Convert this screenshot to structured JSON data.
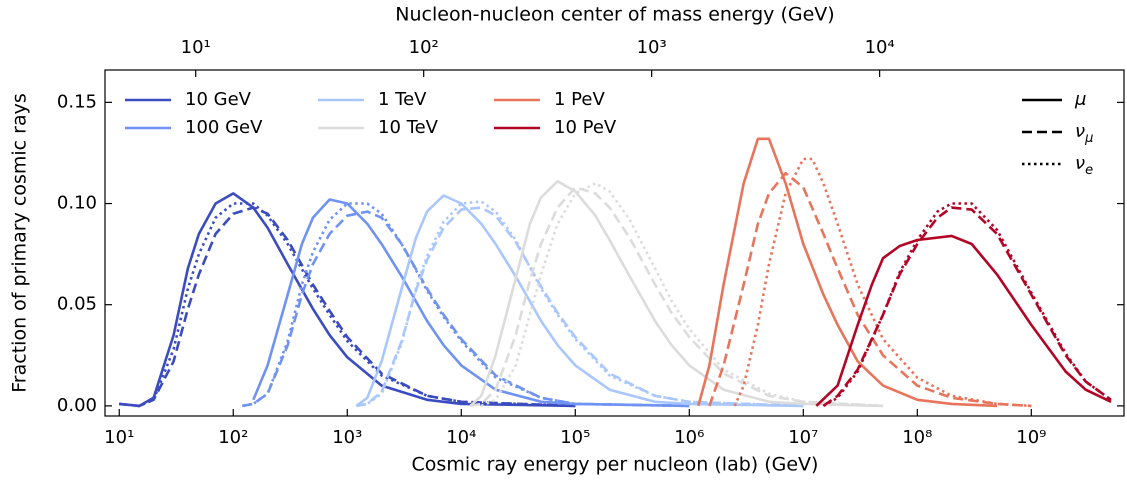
{
  "chart_data": {
    "type": "line",
    "xlabel": "Cosmic ray energy per nucleon (lab) (GeV)",
    "ylabel": "Fraction of primary cosmic rays",
    "x2label": "Nucleon-nucleon center of mass energy (GeV)",
    "xscale": "log",
    "x2scale": "log",
    "xlim": [
      7.5,
      6500000000
    ],
    "ylim": [
      -0.005,
      0.166
    ],
    "x2lim": [
      4.0,
      118000
    ],
    "xticks": [
      {
        "value": 10,
        "label": "10¹"
      },
      {
        "value": 100,
        "label": "10²"
      },
      {
        "value": 1000,
        "label": "10³"
      },
      {
        "value": 10000,
        "label": "10⁴"
      },
      {
        "value": 100000,
        "label": "10⁵"
      },
      {
        "value": 1000000,
        "label": "10⁶"
      },
      {
        "value": 10000000,
        "label": "10⁷"
      },
      {
        "value": 100000000,
        "label": "10⁸"
      },
      {
        "value": 1000000000,
        "label": "10⁹"
      }
    ],
    "x2ticks": [
      {
        "value": 10,
        "label": "10¹"
      },
      {
        "value": 100,
        "label": "10²"
      },
      {
        "value": 1000,
        "label": "10³"
      },
      {
        "value": 10000,
        "label": "10⁴"
      }
    ],
    "yticks": [
      {
        "value": 0,
        "label": "0.00"
      },
      {
        "value": 0.05,
        "label": "0.05"
      },
      {
        "value": 0.1,
        "label": "0.10"
      },
      {
        "value": 0.15,
        "label": "0.15"
      }
    ],
    "flavors": [
      {
        "name": "μ",
        "dash": "solid"
      },
      {
        "name": "ν",
        "subscript": "μ",
        "dash": "dashed"
      },
      {
        "name": "ν",
        "subscript": "e",
        "dash": "dotted"
      }
    ],
    "series": [
      {
        "name": "10 GeV",
        "color": "#3b4cc0",
        "lines": [
          {
            "x": [
              10,
              15,
              20,
              30,
              40,
              50,
              70,
              100,
              150,
              200,
              300,
              500,
              700,
              1000,
              2000,
              5000,
              10000,
              100000
            ],
            "values": [
              0.001,
              0.0,
              0.004,
              0.035,
              0.068,
              0.085,
              0.1,
              0.105,
              0.098,
              0.088,
              0.07,
              0.048,
              0.035,
              0.024,
              0.01,
              0.003,
              0.001,
              0.0
            ]
          },
          {
            "x": [
              10,
              15,
              20,
              30,
              40,
              50,
              70,
              100,
              150,
              200,
              300,
              500,
              700,
              1000,
              2000,
              5000,
              10000,
              100000
            ],
            "values": [
              0.001,
              0.0,
              0.003,
              0.022,
              0.048,
              0.065,
              0.085,
              0.095,
              0.098,
              0.095,
              0.082,
              0.06,
              0.047,
              0.034,
              0.016,
              0.005,
              0.002,
              0.0
            ]
          },
          {
            "x": [
              10,
              15,
              20,
              30,
              40,
              50,
              70,
              100,
              150,
              200,
              300,
              500,
              700,
              1000,
              2000,
              5000,
              10000,
              100000
            ],
            "values": [
              0.001,
              0.0,
              0.003,
              0.028,
              0.058,
              0.075,
              0.093,
              0.1,
              0.1,
              0.094,
              0.08,
              0.058,
              0.045,
              0.032,
              0.015,
              0.005,
              0.002,
              0.0
            ]
          }
        ]
      },
      {
        "name": "100 GeV",
        "color": "#6f92f3",
        "lines": [
          {
            "x": [
              150,
              200,
              300,
              400,
              500,
              700,
              1000,
              1500,
              2000,
              3000,
              5000,
              7000,
              10000,
              20000,
              50000,
              100000,
              1000000
            ],
            "values": [
              0.003,
              0.02,
              0.055,
              0.08,
              0.093,
              0.102,
              0.1,
              0.09,
              0.08,
              0.064,
              0.042,
              0.03,
              0.02,
              0.008,
              0.002,
              0.001,
              0.0
            ]
          },
          {
            "x": [
              120,
              150,
              200,
              300,
              400,
              500,
              700,
              1000,
              1500,
              2000,
              3000,
              5000,
              7000,
              10000,
              20000,
              50000,
              100000,
              1000000
            ],
            "values": [
              0.0,
              0.001,
              0.006,
              0.03,
              0.055,
              0.07,
              0.085,
              0.094,
              0.096,
              0.093,
              0.08,
              0.058,
              0.045,
              0.033,
              0.015,
              0.004,
              0.001,
              0.0
            ]
          },
          {
            "x": [
              120,
              150,
              200,
              300,
              400,
              500,
              700,
              1000,
              1500,
              2000,
              3000,
              5000,
              7000,
              10000,
              20000,
              50000,
              100000,
              1000000
            ],
            "values": [
              0.0,
              0.001,
              0.006,
              0.032,
              0.06,
              0.076,
              0.092,
              0.1,
              0.1,
              0.095,
              0.08,
              0.057,
              0.044,
              0.032,
              0.014,
              0.004,
              0.001,
              0.0
            ]
          }
        ]
      },
      {
        "name": "1 TeV",
        "color": "#aac7fd",
        "lines": [
          {
            "x": [
              1200,
              1500,
              2000,
              3000,
              4000,
              5000,
              7000,
              10000,
              15000,
              20000,
              30000,
              50000,
              70000,
              100000,
              200000,
              500000,
              1000000,
              10000000
            ],
            "values": [
              0.0,
              0.004,
              0.022,
              0.058,
              0.083,
              0.096,
              0.104,
              0.1,
              0.09,
              0.08,
              0.064,
              0.042,
              0.03,
              0.02,
              0.008,
              0.002,
              0.001,
              0.0
            ]
          },
          {
            "x": [
              1200,
              1500,
              2000,
              3000,
              4000,
              5000,
              7000,
              10000,
              15000,
              20000,
              30000,
              50000,
              70000,
              100000,
              200000,
              500000,
              1000000,
              10000000
            ],
            "values": [
              0.0,
              0.001,
              0.007,
              0.032,
              0.057,
              0.072,
              0.088,
              0.097,
              0.098,
              0.094,
              0.081,
              0.059,
              0.046,
              0.034,
              0.016,
              0.005,
              0.002,
              0.0
            ]
          },
          {
            "x": [
              1200,
              1500,
              2000,
              3000,
              4000,
              5000,
              7000,
              10000,
              15000,
              20000,
              30000,
              50000,
              70000,
              100000,
              200000,
              500000,
              1000000,
              10000000
            ],
            "values": [
              0.0,
              0.001,
              0.006,
              0.031,
              0.058,
              0.074,
              0.091,
              0.1,
              0.101,
              0.096,
              0.082,
              0.058,
              0.045,
              0.033,
              0.015,
              0.005,
              0.002,
              0.0
            ]
          }
        ]
      },
      {
        "name": "10 TeV",
        "color": "#dddcdc",
        "lines": [
          {
            "x": [
              12000,
              15000,
              20000,
              30000,
              40000,
              50000,
              70000,
              100000,
              150000,
              200000,
              300000,
              500000,
              700000,
              1000000,
              2000000,
              5000000,
              10000000,
              50000000
            ],
            "values": [
              0.0,
              0.005,
              0.025,
              0.063,
              0.09,
              0.103,
              0.111,
              0.106,
              0.094,
              0.082,
              0.064,
              0.042,
              0.03,
              0.02,
              0.008,
              0.002,
              0.001,
              0.0
            ]
          },
          {
            "x": [
              12000,
              15000,
              20000,
              30000,
              40000,
              50000,
              70000,
              100000,
              150000,
              200000,
              300000,
              500000,
              700000,
              1000000,
              2000000,
              5000000,
              10000000,
              50000000
            ],
            "values": [
              0.0,
              0.001,
              0.008,
              0.035,
              0.062,
              0.08,
              0.098,
              0.108,
              0.105,
              0.098,
              0.083,
              0.06,
              0.046,
              0.034,
              0.016,
              0.005,
              0.002,
              0.0
            ]
          },
          {
            "x": [
              15000,
              20000,
              30000,
              40000,
              50000,
              70000,
              100000,
              150000,
              200000,
              300000,
              500000,
              700000,
              1000000,
              2000000,
              5000000,
              10000000,
              50000000
            ],
            "values": [
              0.0,
              0.003,
              0.02,
              0.045,
              0.065,
              0.09,
              0.105,
              0.11,
              0.106,
              0.092,
              0.068,
              0.052,
              0.038,
              0.018,
              0.006,
              0.002,
              0.0
            ]
          }
        ]
      },
      {
        "name": "1 PeV",
        "color": "#e7745b",
        "lines": [
          {
            "x": [
              1200000,
              1500000,
              2000000,
              3000000,
              4000000,
              5000000,
              7000000,
              10000000,
              15000000,
              20000000,
              30000000,
              50000000,
              100000000,
              200000000,
              500000000
            ],
            "values": [
              0.0,
              0.02,
              0.06,
              0.11,
              0.132,
              0.132,
              0.11,
              0.08,
              0.055,
              0.04,
              0.022,
              0.01,
              0.003,
              0.001,
              0.0
            ]
          },
          {
            "x": [
              1500000,
              2000000,
              3000000,
              4000000,
              5000000,
              7000000,
              10000000,
              15000000,
              20000000,
              30000000,
              50000000,
              100000000,
              200000000,
              500000000,
              1000000000
            ],
            "values": [
              0.0,
              0.02,
              0.06,
              0.09,
              0.105,
              0.115,
              0.108,
              0.085,
              0.068,
              0.045,
              0.025,
              0.01,
              0.004,
              0.001,
              0.0
            ]
          },
          {
            "x": [
              2500000,
              3000000,
              4000000,
              5000000,
              7000000,
              10000000,
              12000000,
              15000000,
              20000000,
              30000000,
              50000000,
              100000000,
              200000000,
              500000000,
              1000000000
            ],
            "values": [
              0.0,
              0.01,
              0.04,
              0.07,
              0.105,
              0.122,
              0.122,
              0.11,
              0.09,
              0.06,
              0.033,
              0.014,
              0.005,
              0.001,
              0.0
            ]
          }
        ]
      },
      {
        "name": "10 PeV",
        "color": "#b40426",
        "lines": [
          {
            "x": [
              13000000,
              20000000,
              30000000,
              40000000,
              50000000,
              70000000,
              100000000,
              200000000,
              300000000,
              500000000,
              1000000000,
              2000000000,
              3000000000,
              5000000000
            ],
            "values": [
              0.0,
              0.01,
              0.04,
              0.06,
              0.073,
              0.079,
              0.082,
              0.084,
              0.08,
              0.065,
              0.04,
              0.017,
              0.008,
              0.002
            ]
          },
          {
            "x": [
              15000000,
              20000000,
              30000000,
              50000000,
              70000000,
              100000000,
              150000000,
              200000000,
              300000000,
              500000000,
              1000000000,
              2000000000,
              3000000000,
              5000000000
            ],
            "values": [
              0.0,
              0.005,
              0.018,
              0.045,
              0.065,
              0.08,
              0.093,
              0.098,
              0.097,
              0.085,
              0.055,
              0.025,
              0.012,
              0.003
            ]
          },
          {
            "x": [
              15000000,
              20000000,
              30000000,
              50000000,
              70000000,
              100000000,
              150000000,
              200000000,
              300000000,
              500000000,
              1000000000,
              2000000000,
              3000000000,
              5000000000
            ],
            "values": [
              0.0,
              0.004,
              0.017,
              0.045,
              0.066,
              0.082,
              0.096,
              0.1,
              0.1,
              0.087,
              0.056,
              0.026,
              0.012,
              0.003
            ]
          }
        ]
      }
    ]
  }
}
